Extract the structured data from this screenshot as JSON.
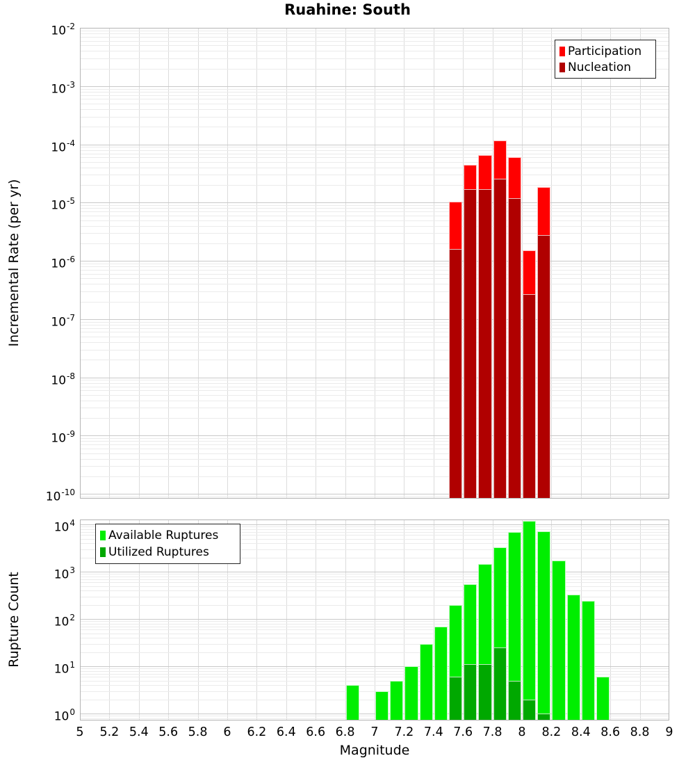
{
  "title": "Ruahine: South",
  "chart_data": [
    {
      "type": "bar",
      "title": "Ruahine: South",
      "ylabel": "Incremental Rate (per yr)",
      "xlabel": "Magnitude",
      "yscale": "log",
      "ylim": [
        1e-10,
        0.01
      ],
      "xlim": [
        5,
        9
      ],
      "bin_width": 0.1,
      "grid": "major and minor log gridlines on",
      "y_tick_exponents": [
        -2,
        -3,
        -4,
        -5,
        -6,
        -7,
        -8,
        -9,
        -10
      ],
      "legend_position": "top-right",
      "series": [
        {
          "name": "Participation",
          "color": "#ff0000",
          "x": [
            7.55,
            7.65,
            7.75,
            7.85,
            7.95,
            8.05,
            8.15
          ],
          "y": [
            1.05e-05,
            4.5e-05,
            6.5e-05,
            0.000116,
            6e-05,
            1.5e-06,
            1.85e-05
          ]
        },
        {
          "name": "Nucleation",
          "color": "#b00000",
          "x": [
            7.55,
            7.65,
            7.75,
            7.85,
            7.95,
            8.05,
            8.15
          ],
          "y": [
            1.6e-06,
            1.7e-05,
            1.7e-05,
            2.6e-05,
            1.2e-05,
            2.7e-07,
            2.8e-06
          ]
        }
      ]
    },
    {
      "type": "bar",
      "title": "",
      "ylabel": "Rupture Count",
      "xlabel": "Magnitude",
      "yscale": "log",
      "ylim": [
        1,
        10000
      ],
      "xlim": [
        5,
        9
      ],
      "bin_width": 0.1,
      "grid": "major and minor log gridlines on",
      "y_tick_exponents": [
        4,
        3,
        2,
        1,
        0
      ],
      "x_ticks": [
        "5",
        "5.2",
        "5.4",
        "5.6",
        "5.8",
        "6",
        "6.2",
        "6.4",
        "6.6",
        "6.8",
        "7",
        "7.2",
        "7.4",
        "7.6",
        "7.8",
        "8",
        "8.2",
        "8.4",
        "8.6",
        "8.8",
        "9"
      ],
      "legend_position": "top-left",
      "series": [
        {
          "name": "Available Ruptures",
          "color": "#00ee00",
          "x": [
            6.85,
            7.05,
            7.15,
            7.25,
            7.35,
            7.45,
            7.55,
            7.65,
            7.75,
            7.85,
            7.95,
            8.05,
            8.15,
            8.25,
            8.35,
            8.45,
            8.55
          ],
          "y": [
            4,
            3,
            5,
            10,
            30,
            70,
            200,
            550,
            1450,
            3300,
            7000,
            12000,
            7200,
            1700,
            330,
            240,
            6
          ]
        },
        {
          "name": "Utilized Ruptures",
          "color": "#00a800",
          "x": [
            7.55,
            7.65,
            7.75,
            7.85,
            7.95,
            8.05,
            8.15
          ],
          "y": [
            6,
            11,
            11,
            25,
            5,
            2,
            1
          ]
        }
      ]
    }
  ]
}
